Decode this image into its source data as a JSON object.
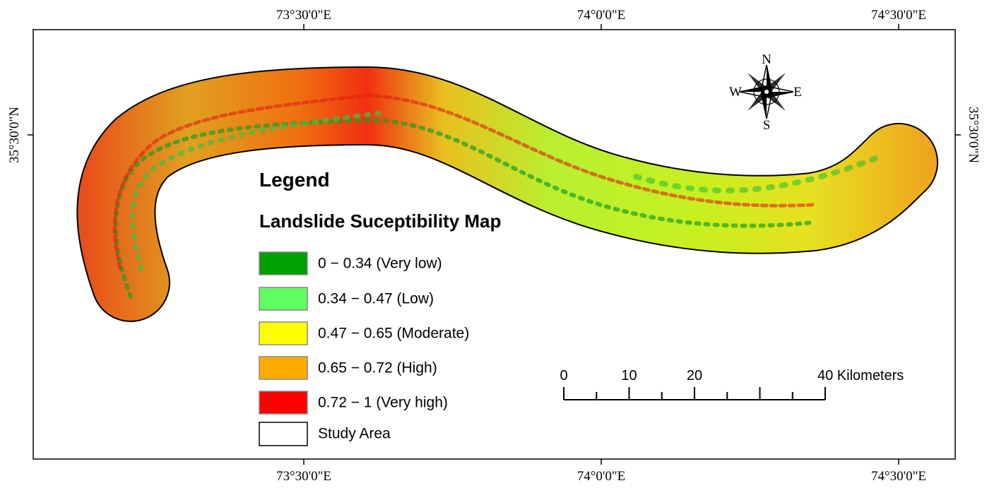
{
  "frame": {
    "top_labels": [
      "73°30'0\"E",
      "74°0'0\"E",
      "74°30'0\"E"
    ],
    "bottom_labels": [
      "73°30'0\"E",
      "74°0'0\"E",
      "74°30'0\"E"
    ],
    "left_labels": [
      "35°30'0\"N"
    ],
    "right_labels": [
      "35°30'0\"N"
    ]
  },
  "compass": {
    "n": "N",
    "e": "E",
    "s": "S",
    "w": "W"
  },
  "legend": {
    "title": "Legend",
    "subtitle": "Landslide Suceptibility Map",
    "items": [
      {
        "label": "0 − 0.34 (Very low)",
        "color": "#00a000"
      },
      {
        "label": "0.34 − 0.47 (Low)",
        "color": "#60ff60"
      },
      {
        "label": "0.47 − 0.65 (Moderate)",
        "color": "#ffff00"
      },
      {
        "label": "0.65 − 0.72 (High)",
        "color": "#ffaa00"
      },
      {
        "label": "0.72 − 1 (Very high)",
        "color": "#ff0000"
      }
    ],
    "study_area": "Study Area"
  },
  "scale_bar": {
    "labels": [
      "0",
      "10",
      "20",
      "40 Kilometers"
    ]
  }
}
